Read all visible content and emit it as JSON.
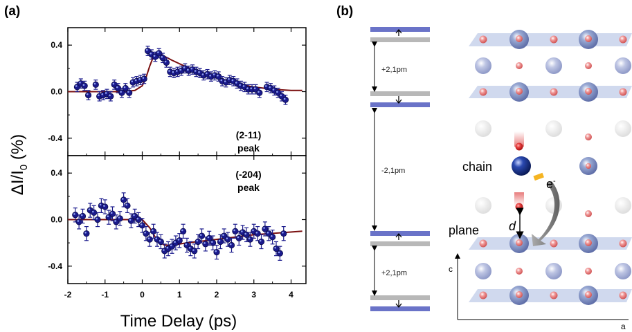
{
  "panel_a": {
    "label": "(a)",
    "y_axis_label": "ΔI/I",
    "y_axis_label_sub": "0",
    "y_axis_label_unit": " (%)",
    "x_axis_label": "Time Delay (ps)"
  },
  "panel_b": {
    "label": "(b)",
    "displacements": [
      "+2,1pm",
      "-2,1pm",
      "+2,1pm"
    ],
    "labels": {
      "chain": "chain",
      "plane": "plane",
      "electron": "e",
      "electron_sup": "-",
      "d": "d",
      "axis_c": "c",
      "axis_a": "a"
    }
  },
  "chart_data": [
    {
      "type": "scatter",
      "annotation": [
        "(2-11)",
        "peak"
      ],
      "xlim": [
        -2,
        4.4
      ],
      "ylim": [
        -0.55,
        0.55
      ],
      "x_ticks": [
        -2,
        -1,
        0,
        1,
        2,
        3,
        4
      ],
      "y_ticks": [
        0.4,
        0.0,
        -0.4
      ],
      "y_tick_labels": [
        "0.4",
        "0.0",
        "-0.4"
      ],
      "colors": {
        "points": "#1a1a8c",
        "fit": "#7a0f0f"
      },
      "x": [
        -1.75,
        -1.65,
        -1.55,
        -1.45,
        -1.25,
        -1.15,
        -1.05,
        -0.95,
        -0.85,
        -0.75,
        -0.65,
        -0.55,
        -0.45,
        -0.35,
        -0.25,
        -0.15,
        -0.05,
        0.05,
        0.15,
        0.25,
        0.35,
        0.45,
        0.55,
        0.65,
        0.75,
        0.85,
        0.95,
        1.05,
        1.15,
        1.25,
        1.35,
        1.45,
        1.55,
        1.65,
        1.75,
        1.85,
        1.95,
        2.05,
        2.15,
        2.25,
        2.35,
        2.45,
        2.55,
        2.65,
        2.75,
        2.85,
        2.95,
        3.05,
        3.15,
        3.35,
        3.45,
        3.55,
        3.65,
        3.75,
        3.85
      ],
      "y": [
        0.04,
        0.07,
        0.05,
        -0.03,
        0.06,
        -0.04,
        -0.03,
        -0.02,
        -0.04,
        0.06,
        0.03,
        -0.01,
        0.03,
        -0.01,
        0.08,
        0.09,
        0.1,
        0.11,
        0.35,
        0.32,
        0.3,
        0.33,
        0.29,
        0.25,
        0.17,
        0.16,
        0.17,
        0.18,
        0.2,
        0.18,
        0.19,
        0.17,
        0.16,
        0.14,
        0.15,
        0.13,
        0.14,
        0.13,
        0.09,
        0.08,
        0.1,
        0.09,
        0.07,
        0.05,
        0.04,
        0.02,
        0.02,
        0.02,
        -0.01,
        0.04,
        0.03,
        0.01,
        -0.01,
        -0.04,
        -0.07
      ],
      "yerr": [
        0.04,
        0.04,
        0.04,
        0.04,
        0.04,
        0.04,
        0.04,
        0.04,
        0.04,
        0.04,
        0.04,
        0.04,
        0.04,
        0.04,
        0.04,
        0.04,
        0.04,
        0.04,
        0.04,
        0.04,
        0.04,
        0.04,
        0.04,
        0.04,
        0.04,
        0.04,
        0.04,
        0.04,
        0.04,
        0.04,
        0.04,
        0.04,
        0.04,
        0.04,
        0.04,
        0.04,
        0.04,
        0.04,
        0.04,
        0.04,
        0.04,
        0.04,
        0.04,
        0.04,
        0.04,
        0.04,
        0.04,
        0.04,
        0.04,
        0.04,
        0.04,
        0.04,
        0.04,
        0.04,
        0.04
      ],
      "fit": {
        "x": [
          -2,
          -1.5,
          -1,
          -0.5,
          -0.2,
          0,
          0.1,
          0.2,
          0.3,
          0.4,
          0.5,
          0.8,
          1.2,
          1.6,
          2.0,
          2.5,
          3.0,
          3.5,
          4.0,
          4.3
        ],
        "y": [
          0.0,
          0.0,
          0.0,
          0.0,
          0.01,
          0.05,
          0.12,
          0.22,
          0.3,
          0.33,
          0.32,
          0.27,
          0.21,
          0.16,
          0.12,
          0.07,
          0.04,
          0.02,
          0.01,
          0.01
        ]
      }
    },
    {
      "type": "scatter",
      "annotation": [
        "(-204)",
        "peak"
      ],
      "xlim": [
        -2,
        4.4
      ],
      "ylim": [
        -0.55,
        0.55
      ],
      "x_ticks": [
        -2,
        -1,
        0,
        1,
        2,
        3,
        4
      ],
      "x_tick_labels": [
        "-2",
        "-1",
        "0",
        "1",
        "2",
        "3",
        "4"
      ],
      "y_ticks": [
        0.4,
        0.0,
        -0.4
      ],
      "y_tick_labels": [
        "0.4",
        "0.0",
        "-0.4"
      ],
      "colors": {
        "points": "#1a1a8c",
        "fit": "#7a0f0f"
      },
      "x": [
        -1.8,
        -1.7,
        -1.6,
        -1.5,
        -1.4,
        -1.3,
        -1.2,
        -1.1,
        -1.0,
        -0.9,
        -0.8,
        -0.7,
        -0.6,
        -0.5,
        -0.4,
        -0.3,
        -0.2,
        -0.1,
        0.0,
        0.1,
        0.2,
        0.3,
        0.4,
        0.5,
        0.6,
        0.7,
        0.8,
        0.9,
        1.0,
        1.1,
        1.2,
        1.3,
        1.4,
        1.5,
        1.6,
        1.7,
        1.8,
        1.9,
        2.0,
        2.1,
        2.2,
        2.3,
        2.4,
        2.5,
        2.6,
        2.7,
        2.8,
        2.9,
        3.0,
        3.1,
        3.2,
        3.3,
        3.4,
        3.5,
        3.6,
        3.7,
        3.8
      ],
      "y": [
        0.04,
        -0.02,
        0.03,
        -0.12,
        0.08,
        0.06,
        0.0,
        0.12,
        0.11,
        0.02,
        0.05,
        -0.02,
        0.01,
        0.17,
        0.12,
        -0.01,
        0.03,
        0.0,
        -0.05,
        -0.12,
        -0.17,
        -0.1,
        -0.17,
        -0.19,
        -0.27,
        -0.25,
        -0.23,
        -0.2,
        -0.18,
        -0.1,
        -0.22,
        -0.25,
        -0.27,
        -0.19,
        -0.14,
        -0.21,
        -0.16,
        -0.2,
        -0.28,
        -0.19,
        -0.14,
        -0.17,
        -0.22,
        -0.1,
        -0.16,
        -0.11,
        -0.13,
        -0.17,
        -0.1,
        -0.12,
        -0.19,
        -0.08,
        -0.12,
        -0.15,
        -0.25,
        -0.29,
        -0.12
      ],
      "yerr": [
        0.06,
        0.06,
        0.06,
        0.06,
        0.06,
        0.06,
        0.06,
        0.06,
        0.06,
        0.06,
        0.06,
        0.06,
        0.06,
        0.06,
        0.06,
        0.06,
        0.06,
        0.06,
        0.06,
        0.06,
        0.06,
        0.06,
        0.06,
        0.06,
        0.06,
        0.06,
        0.06,
        0.06,
        0.06,
        0.06,
        0.06,
        0.06,
        0.06,
        0.06,
        0.06,
        0.06,
        0.06,
        0.06,
        0.06,
        0.06,
        0.06,
        0.06,
        0.06,
        0.06,
        0.06,
        0.06,
        0.06,
        0.06,
        0.06,
        0.06,
        0.06,
        0.06,
        0.06,
        0.06,
        0.06,
        0.06,
        0.06
      ],
      "fit": {
        "x": [
          -2,
          -1.0,
          -0.5,
          0.0,
          0.2,
          0.4,
          0.6,
          0.8,
          1.2,
          2.0,
          3.0,
          4.3
        ],
        "y": [
          0.0,
          0.0,
          0.0,
          0.0,
          -0.07,
          -0.18,
          -0.22,
          -0.22,
          -0.2,
          -0.17,
          -0.13,
          -0.1
        ]
      }
    }
  ]
}
